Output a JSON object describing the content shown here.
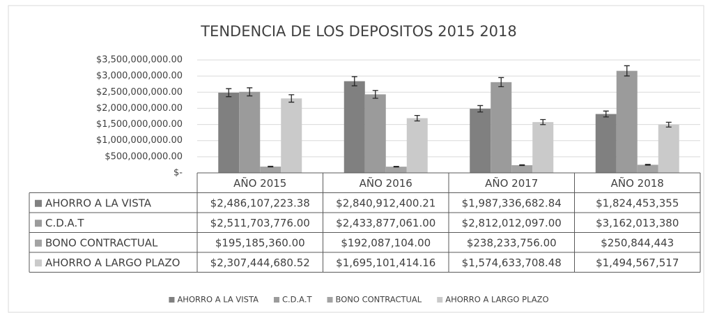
{
  "chart_data": {
    "type": "bar",
    "title": "TENDENCIA DE LOS DEPOSITOS  2015  2018",
    "categories": [
      "AÑO  2015",
      "AÑO  2016",
      "AÑO 2017",
      "AÑO 2018"
    ],
    "series": [
      {
        "name": "AHORRO A LA VISTA",
        "color": "#808080",
        "values": [
          2486107223.38,
          2840912400.21,
          1987336682.84,
          1824453355
        ],
        "value_labels": [
          "$2,486,107,223.38",
          "$2,840,912,400.21",
          "$1,987,336,682.84",
          "$1,824,453,355"
        ]
      },
      {
        "name": "C.D.A.T",
        "color": "#9b9b9b",
        "values": [
          2511703776.0,
          2433877061.0,
          2812012097.0,
          3162013380
        ],
        "value_labels": [
          "$2,511,703,776.00",
          "$2,433,877,061.00",
          "$2,812,012,097.00",
          "$3,162,013,380"
        ]
      },
      {
        "name": "BONO CONTRACTUAL",
        "color": "#a3a3a3",
        "values": [
          195185360.0,
          192087104.0,
          238233756.0,
          250844443
        ],
        "value_labels": [
          "$195,185,360.00",
          "$192,087,104.00",
          "$238,233,756.00",
          "$250,844,443"
        ]
      },
      {
        "name": "AHORRO A LARGO PLAZO",
        "color": "#cacaca",
        "values": [
          2307444680.52,
          1695101414.16,
          1574633708.48,
          1494567517
        ],
        "value_labels": [
          "$2,307,444,680.52",
          "$1,695,101,414.16",
          "$1,574,633,708.48",
          "$1,494,567,517"
        ]
      }
    ],
    "error_percent": 5,
    "ylim": [
      0,
      3500000000
    ],
    "yticks": [
      {
        "value": 0,
        "label": "$-"
      },
      {
        "value": 500000000,
        "label": "$500,000,000.00"
      },
      {
        "value": 1000000000,
        "label": "$1,000,000,000.00"
      },
      {
        "value": 1500000000,
        "label": "$1,500,000,000.00"
      },
      {
        "value": 2000000000,
        "label": "$2,000,000,000.00"
      },
      {
        "value": 2500000000,
        "label": "$2,500,000,000.00"
      },
      {
        "value": 3000000000,
        "label": "$3,000,000,000.00"
      },
      {
        "value": 3500000000,
        "label": "$3,500,000,000.00"
      }
    ],
    "grid": true,
    "legend": "bottom"
  }
}
